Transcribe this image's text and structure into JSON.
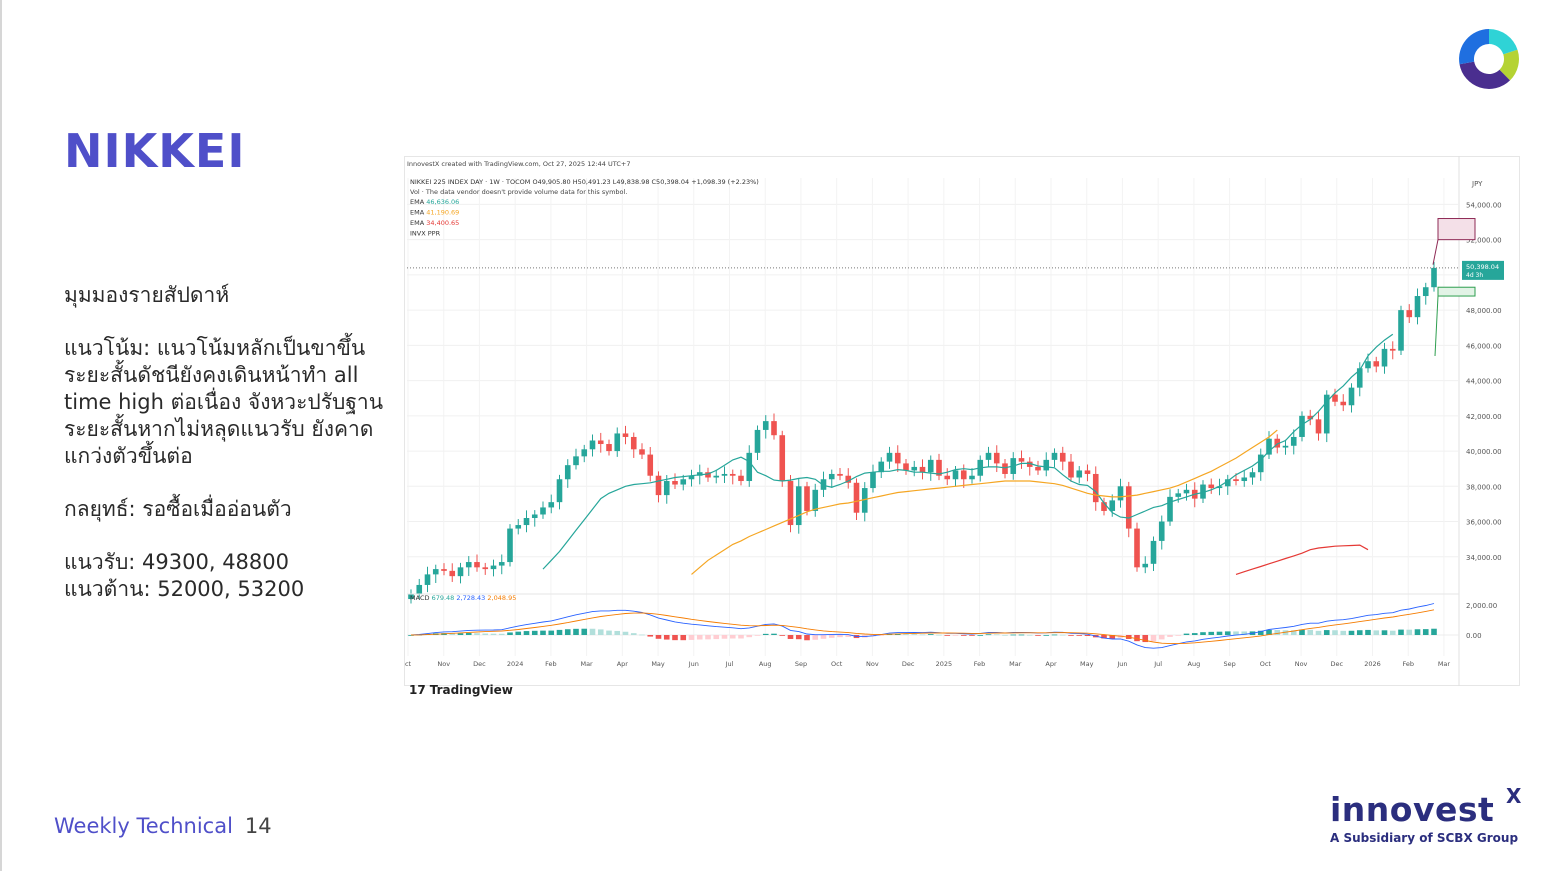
{
  "slide": {
    "title": "NIKKEI",
    "heading": "มุมมองรายสัปดาห์",
    "trend": "แนวโน้ม: แนวโน้มหลักเป็นขาขึ้น ระยะสั้นดัชนียังคงเดินหน้าทำ all time high ต่อเนื่อง จังหวะปรับฐานระยะสั้นหากไม่หลุดแนวรับ ยังคาดแกว่งตัวขึ้นต่อ",
    "strategy": "กลยุทธ์: รอซื้อเมื่ออ่อนตัว",
    "support": "แนวรับ: 49300, 48800",
    "resistance": "แนวต้าน: 52000, 53200",
    "footer_label": "Weekly Technical",
    "page_number": "14",
    "brand_name": "innovest",
    "brand_x": "X",
    "brand_subtitle": "A Subsidiary of SCBX Group",
    "colors": {
      "accent": "#4f4fc9",
      "brand": "#2b2e7e"
    }
  },
  "chart_data": {
    "type": "candlestick",
    "credit": "InnovestX created with TradingView.com, Oct 27, 2025 12:44 UTC+7",
    "header": "NIKKEI 225 INDEX DAY · 1W · TOCOM  O49,905.80 H50,491.23 L49,838.98 C50,398.04 +1,098.39 (+2.23%)",
    "vol_note": "Vol · The data vendor doesn't provide volume data for this symbol.",
    "indicators": [
      {
        "label": "EMA",
        "value": "46,636.06",
        "color": "#26a69a"
      },
      {
        "label": "EMA",
        "value": "41,190.69",
        "color": "#f5a623"
      },
      {
        "label": "EMA",
        "value": "34,400.65",
        "color": "#e53935"
      },
      {
        "label": "INVX PPR",
        "value": "",
        "color": "#333333"
      }
    ],
    "currency": "JPY",
    "y_ticks": [
      "54,000.00",
      "52,000.00",
      "50,000.00",
      "48,000.00",
      "46,000.00",
      "44,000.00",
      "42,000.00",
      "40,000.00",
      "38,000.00",
      "36,000.00",
      "34,000.00"
    ],
    "y_range": [
      32000,
      55500
    ],
    "last_price": "50,398.04",
    "countdown": "4d 3h",
    "macd_label": "MACD",
    "macd_values": [
      {
        "value": "679.48",
        "color": "#26a69a"
      },
      {
        "value": "2,728.43",
        "color": "#2962ff"
      },
      {
        "value": "2,048.95",
        "color": "#f57c00"
      }
    ],
    "macd_ticks": [
      "2,000.00",
      "0.00"
    ],
    "x_labels": [
      "ct",
      "Nov",
      "Dec",
      "2024",
      "Feb",
      "Mar",
      "Apr",
      "May",
      "Jun",
      "Jul",
      "Aug",
      "Sep",
      "Oct",
      "Nov",
      "Dec",
      "2025",
      "Feb",
      "Mar",
      "Apr",
      "May",
      "Jun",
      "Jul",
      "Aug",
      "Sep",
      "Oct",
      "Nov",
      "Dec",
      "2026",
      "Feb",
      "Mar"
    ],
    "bars_per_month": 4.33,
    "closes": [
      31900,
      32400,
      33000,
      33300,
      33200,
      32900,
      33400,
      33700,
      33400,
      33300,
      33500,
      33700,
      35600,
      35800,
      36200,
      36400,
      36800,
      37100,
      38400,
      39200,
      39700,
      40100,
      40600,
      40400,
      40000,
      41000,
      40800,
      40100,
      39800,
      38600,
      37500,
      38300,
      38100,
      38400,
      38600,
      38800,
      38500,
      38600,
      38700,
      38600,
      38300,
      39900,
      41200,
      41700,
      40900,
      38300,
      35800,
      38000,
      36600,
      37800,
      38400,
      38700,
      38600,
      38200,
      36500,
      37900,
      38800,
      39400,
      39900,
      39300,
      38900,
      39100,
      38800,
      39500,
      38600,
      38400,
      38900,
      38400,
      38600,
      39500,
      39900,
      39300,
      38700,
      39600,
      39400,
      39100,
      38900,
      39500,
      39900,
      39400,
      38500,
      38900,
      38700,
      37100,
      36600,
      37200,
      38000,
      35600,
      33400,
      33600,
      34900,
      36000,
      37400,
      37600,
      37800,
      37300,
      38100,
      37900,
      38000,
      38400,
      38300,
      38500,
      38800,
      39800,
      40700,
      40200,
      40300,
      40800,
      42000,
      41800,
      41000,
      43200,
      42800,
      42600,
      43600,
      44700,
      45100,
      44800,
      45800,
      45700,
      48000,
      47600,
      48800,
      49300,
      50398
    ],
    "ema_fast": {
      "color": "#26a69a",
      "start": 16,
      "values": [
        33300,
        33800,
        34300,
        34900,
        35500,
        36100,
        36700,
        37300,
        37600,
        37800,
        38000,
        38100,
        38150,
        38200,
        38300,
        38400,
        38500,
        38550,
        38600,
        38650,
        38700,
        38900,
        39200,
        39500,
        39650,
        39400,
        38800,
        38600,
        38350,
        38300,
        38350,
        38450,
        38500,
        38400,
        38050,
        37950,
        38100,
        38300,
        38550,
        38750,
        38800,
        38850,
        38850,
        38950,
        38900,
        38800,
        38800,
        38750,
        38700,
        38800,
        38950,
        39000,
        38950,
        39050,
        39100,
        39100,
        39050,
        39150,
        39300,
        39300,
        39150,
        39100,
        39050,
        38650,
        38300,
        38100,
        38050,
        37700,
        37050,
        36500,
        36250,
        36200,
        36400,
        36600,
        36800,
        36900,
        37100,
        37250,
        37400,
        37550,
        37650,
        37800,
        38000,
        38300,
        38650,
        38900,
        39150,
        39500,
        40000,
        40400,
        40600,
        41100,
        41500,
        41800,
        42250,
        42800,
        43300,
        43700,
        44200,
        44600,
        45400,
        45900,
        46300,
        46636
      ]
    },
    "ema_mid": {
      "color": "#f5a623",
      "start": 34,
      "values": [
        33000,
        33400,
        33800,
        34100,
        34400,
        34700,
        34900,
        35150,
        35350,
        35550,
        35750,
        35950,
        36150,
        36350,
        36550,
        36700,
        36800,
        36900,
        37000,
        37050,
        37150,
        37250,
        37350,
        37450,
        37550,
        37650,
        37700,
        37750,
        37800,
        37850,
        37900,
        37950,
        38000,
        38050,
        38100,
        38150,
        38200,
        38250,
        38300,
        38300,
        38300,
        38300,
        38250,
        38200,
        38150,
        38050,
        37900,
        37750,
        37600,
        37500,
        37450,
        37400,
        37400,
        37450,
        37500,
        37600,
        37700,
        37800,
        37900,
        38050,
        38250,
        38450,
        38650,
        38850,
        39100,
        39350,
        39600,
        39900,
        40200,
        40500,
        40800,
        41190
      ]
    },
    "ema_slow": {
      "color": "#e53935",
      "start": 100,
      "values": [
        33000,
        33150,
        33300,
        33450,
        33600,
        33750,
        33900,
        34050,
        34200,
        34400,
        34500,
        34550,
        34600,
        34620,
        34640,
        34660,
        34400
      ]
    },
    "resistance_zone": [
      52000,
      53200
    ],
    "support_zone": [
      48800,
      49300
    ]
  }
}
